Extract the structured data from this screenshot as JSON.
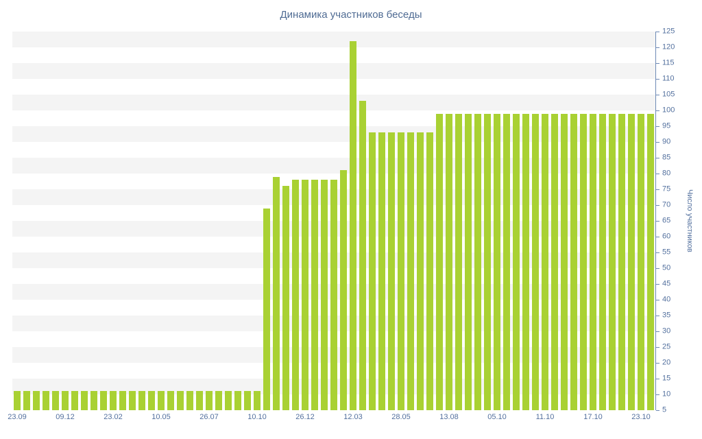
{
  "title": "Динамика участников беседы",
  "colors": {
    "bar": "#a9d133",
    "band": "#f4f4f4",
    "axis_text": "#53709e",
    "axis_line": "#6d89b5",
    "title_text": "#4f6b93",
    "background": "#ffffff"
  },
  "chart_data": {
    "type": "bar",
    "title": "Динамика участников беседы",
    "xlabel": "",
    "ylabel": "Число участников",
    "y_min": 5,
    "y_max": 125,
    "y_tick_step": 5,
    "y_axis_position": "right",
    "legend": "none",
    "grid": "alternate-horizontal-bands",
    "x_tick_every": 5,
    "x_tick_labels": [
      "23.09",
      "09.12",
      "23.02",
      "10.05",
      "26.07",
      "10.10",
      "26.12",
      "12.03",
      "28.05",
      "13.08",
      "05.10",
      "11.10",
      "17.10",
      "23.10"
    ],
    "values": [
      11,
      11,
      11,
      11,
      11,
      11,
      11,
      11,
      11,
      11,
      11,
      11,
      11,
      11,
      11,
      11,
      11,
      11,
      11,
      11,
      11,
      11,
      11,
      11,
      11,
      11,
      69,
      79,
      76,
      78,
      78,
      78,
      78,
      78,
      81,
      122,
      103,
      93,
      93,
      93,
      93,
      93,
      93,
      93,
      99,
      99,
      99,
      99,
      99,
      99,
      99,
      99,
      99,
      99,
      99,
      99,
      99,
      99,
      99,
      99,
      99,
      99,
      99,
      99,
      99,
      99,
      99
    ]
  }
}
